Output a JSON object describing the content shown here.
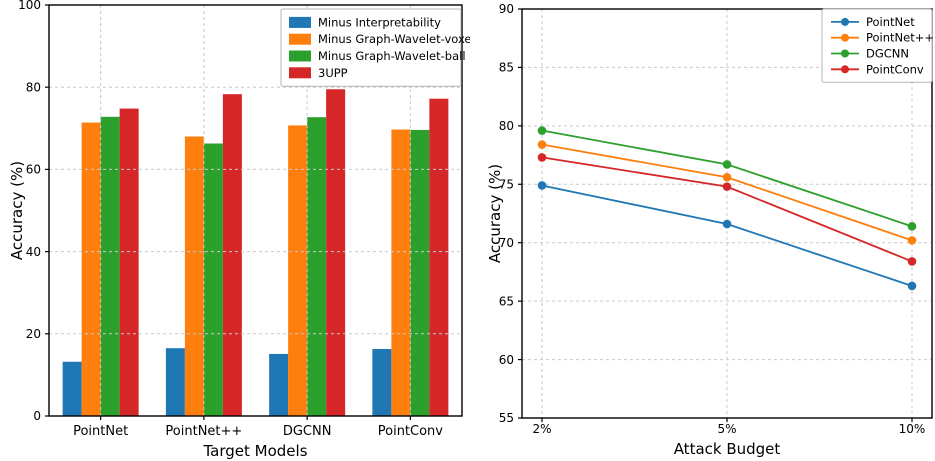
{
  "page": {
    "background_color": "#ffffff"
  },
  "chart_data": [
    {
      "id": "ablation-bar-chart",
      "type": "bar",
      "title": "",
      "xlabel": "Target Models",
      "ylabel": "Accuracy (%)",
      "categories": [
        "PointNet",
        "PointNet++",
        "DGCNN",
        "PointConv"
      ],
      "series": [
        {
          "name": "Minus Interpretability",
          "color": "#1f77b4",
          "values": [
            13.2,
            16.5,
            15.1,
            16.3
          ]
        },
        {
          "name": "Minus Graph-Wavelet-voxel",
          "color": "#ff7f0e",
          "values": [
            71.4,
            68.0,
            70.7,
            69.7
          ]
        },
        {
          "name": "Minus Graph-Wavelet-ball",
          "color": "#2ca02c",
          "values": [
            72.8,
            66.3,
            72.7,
            69.6
          ]
        },
        {
          "name": "3UPP",
          "color": "#d62728",
          "values": [
            74.8,
            78.3,
            79.5,
            77.2
          ]
        }
      ],
      "ylim": [
        0,
        100
      ],
      "yticks": [
        0,
        20,
        40,
        60,
        80,
        100
      ],
      "grid": true,
      "grid_color": "#c9c9c9",
      "legend_position": "upper right"
    },
    {
      "id": "attack-budget-line-chart",
      "type": "line",
      "title": "",
      "xlabel": "Attack Budget",
      "ylabel": "Accuracy (%)",
      "categories": [
        "2%",
        "5%",
        "10%"
      ],
      "series": [
        {
          "name": "PointNet",
          "color": "#1f77b4",
          "values": [
            74.9,
            71.6,
            66.3
          ]
        },
        {
          "name": "PointNet++",
          "color": "#ff7f0e",
          "values": [
            78.4,
            75.6,
            70.2
          ]
        },
        {
          "name": "DGCNN",
          "color": "#2ca02c",
          "values": [
            79.6,
            76.7,
            71.4
          ]
        },
        {
          "name": "PointConv",
          "color": "#d62728",
          "values": [
            77.3,
            74.8,
            68.4
          ]
        }
      ],
      "ylim": [
        55,
        90
      ],
      "yticks": [
        55,
        60,
        65,
        70,
        75,
        80,
        85,
        90
      ],
      "grid": true,
      "grid_color": "#c9c9c9",
      "legend_position": "upper right"
    }
  ]
}
